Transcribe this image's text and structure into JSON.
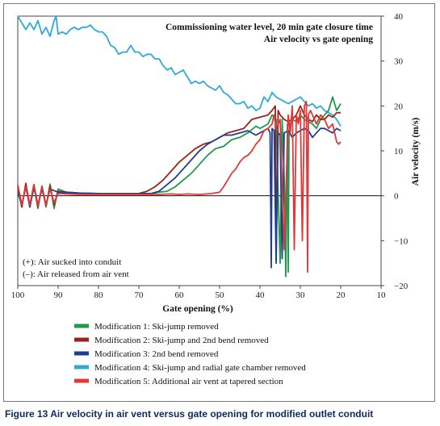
{
  "caption": "Figure 13 Air velocity in air vent versus gate opening for modified outlet conduit",
  "chart_data": {
    "type": "line",
    "title": "Commissioning water level, 20 min gate closure time",
    "subtitle": "Air velocity vs gate opening",
    "xlabel": "Gate opening (%)",
    "ylabel": "Air velocity (m/s)",
    "xlim": [
      100,
      10
    ],
    "ylim": [
      -20,
      40
    ],
    "x_ticks": [
      100,
      90,
      80,
      70,
      60,
      50,
      40,
      30,
      20,
      10
    ],
    "y_ticks": [
      -20,
      -10,
      0,
      10,
      20,
      30,
      40
    ],
    "legend_position": "bottom",
    "grid": false,
    "annotations": [
      "(+): Air sucked into conduit",
      "(–): Air released from air vent"
    ],
    "series": [
      {
        "name": "Modification 1: Ski-jump removed",
        "color": "#1f9a4c",
        "x": [
          100,
          99,
          98,
          97,
          96,
          95,
          94,
          93,
          92,
          91,
          90,
          88,
          85,
          80,
          75,
          70,
          67,
          65,
          63,
          61,
          59,
          57,
          55,
          53,
          51,
          49,
          47,
          45,
          43,
          41,
          40,
          39,
          38,
          37,
          36,
          35,
          34.5,
          34,
          33.6,
          33.2,
          33,
          32.8,
          32.5,
          32,
          31,
          30,
          29,
          28,
          27,
          26,
          25,
          24,
          23,
          22,
          21,
          20
        ],
        "y": [
          1.5,
          -2.5,
          2.5,
          -2.5,
          2,
          -2.8,
          2.2,
          -2.5,
          2.6,
          -2.8,
          1.5,
          0.8,
          0.6,
          0.4,
          0.5,
          0.4,
          0.5,
          0.8,
          1,
          2,
          3.5,
          5,
          7,
          9,
          10.5,
          11,
          12.5,
          13,
          14,
          15.5,
          15,
          15.5,
          16,
          18,
          17,
          -15,
          17,
          4,
          -18,
          16,
          -17,
          14,
          16,
          17,
          16.5,
          18,
          17,
          16.5,
          16,
          15,
          17,
          18,
          19,
          22,
          19,
          20.5
        ]
      },
      {
        "name": "Modification 2: Ski-jump and 2nd bend removed",
        "color": "#9b2318",
        "x": [
          100,
          99,
          98,
          97,
          96,
          95,
          94,
          93,
          92,
          91,
          90,
          88,
          85,
          80,
          75,
          70,
          68,
          66,
          64,
          62,
          60,
          58,
          56,
          54,
          52,
          50,
          48,
          46,
          44,
          42,
          40,
          38,
          37,
          36.2,
          36,
          35.5,
          35,
          34,
          33,
          32,
          31,
          30,
          29,
          28,
          27,
          26,
          25,
          24,
          23,
          22,
          21,
          20
        ],
        "y": [
          2,
          -2.5,
          2.8,
          -2.2,
          2.5,
          -2.5,
          2,
          -2.2,
          2.2,
          -2,
          1,
          0.8,
          0.6,
          0.5,
          0.5,
          0.5,
          1,
          2,
          3.5,
          5.5,
          7.5,
          9,
          10.5,
          11.5,
          12,
          13,
          14,
          14.5,
          15,
          17,
          17.5,
          18,
          19,
          20,
          -14,
          19,
          18,
          17,
          16.5,
          17,
          18,
          20,
          18,
          17,
          16.5,
          18,
          17,
          17,
          18,
          17.5,
          18.5,
          18.5
        ]
      },
      {
        "name": "Modification 3: 2nd bend removed",
        "color": "#1f3f8c",
        "x": [
          100,
          99,
          98,
          97,
          96,
          95,
          94,
          93,
          92,
          90,
          88,
          85,
          80,
          75,
          70,
          67,
          65,
          63,
          61,
          59,
          57,
          55,
          53,
          51,
          49,
          47,
          45,
          43,
          41,
          40,
          39,
          38,
          37.5,
          37.2,
          37,
          36.5,
          36,
          35.5,
          35,
          34.5,
          34,
          33,
          32,
          31,
          30,
          29,
          28,
          27,
          26,
          25,
          24,
          23,
          22,
          21,
          20
        ],
        "y": [
          1,
          -2,
          2,
          -2.5,
          2,
          -2,
          1.5,
          -2,
          1.5,
          0.8,
          0.7,
          0.6,
          0.5,
          0.4,
          0.5,
          0.5,
          1,
          2.5,
          4,
          6,
          8,
          10,
          11.5,
          12.5,
          13.5,
          13.5,
          14,
          14.5,
          13.5,
          14,
          14.5,
          15,
          14,
          -16,
          15,
          14.5,
          -15,
          14,
          13.5,
          -14,
          14,
          14.5,
          13,
          14,
          14.5,
          15,
          14.5,
          13,
          14,
          15,
          15,
          14.5,
          14,
          15,
          14.5
        ]
      },
      {
        "name": "Modification 4: Ski-jump and radial gate chamber removed",
        "color": "#2fa8dc",
        "x": [
          100,
          99,
          98,
          97,
          96,
          95,
          94,
          93,
          92,
          91,
          90.5,
          90,
          89,
          88,
          87,
          86,
          85,
          84,
          83,
          82,
          81,
          80,
          79,
          78,
          77,
          76,
          75,
          74,
          73,
          72,
          71,
          70,
          69,
          68,
          67,
          66,
          65,
          64,
          63,
          62,
          61,
          60,
          59,
          58,
          57,
          56,
          55,
          54,
          53,
          52,
          51,
          50,
          49,
          48,
          47,
          46,
          45,
          44,
          43,
          42,
          41,
          40,
          39,
          38,
          37,
          36,
          35,
          34,
          33,
          32,
          31,
          30,
          29,
          28,
          27,
          26,
          25,
          24,
          23,
          22,
          21,
          20
        ],
        "y": [
          40,
          38.5,
          37,
          38.5,
          37,
          39,
          36,
          37.5,
          35.5,
          39,
          40,
          36,
          36.5,
          36,
          37,
          37.5,
          37,
          37.5,
          37.5,
          38,
          37,
          36.5,
          36.5,
          35.5,
          33.5,
          33,
          31.5,
          32,
          32,
          33.5,
          32,
          32,
          31,
          31.5,
          31.5,
          30.5,
          30.5,
          29,
          28,
          28.5,
          27,
          27.5,
          28,
          26.5,
          25,
          25.5,
          25,
          25.5,
          24.5,
          24,
          23.5,
          24.5,
          23,
          22.5,
          21.5,
          20.5,
          20.5,
          21,
          19.5,
          20,
          19,
          19.5,
          22,
          21,
          23,
          22,
          21.5,
          21,
          20.5,
          21,
          21.5,
          22,
          21,
          20,
          20.5,
          19.5,
          20,
          19,
          18.5,
          18,
          17,
          15.5
        ]
      },
      {
        "name": "Modification 5: Additional air vent at tapered section",
        "color": "#e03838",
        "x": [
          100,
          99,
          98,
          97,
          96,
          95,
          94,
          93,
          92,
          91,
          90,
          88,
          85,
          80,
          75,
          70,
          65,
          62,
          60,
          58,
          55,
          52,
          50,
          49,
          48,
          47,
          46,
          45,
          44,
          43,
          42,
          41,
          40,
          39,
          38,
          37,
          36.5,
          36,
          35,
          34,
          33,
          32.5,
          32,
          31.5,
          31,
          30.5,
          30,
          29.5,
          29,
          28.5,
          28.2,
          28,
          27.5,
          27,
          26,
          25,
          24,
          23,
          22,
          21,
          20.5,
          20
        ],
        "y": [
          2.5,
          -2,
          2,
          -2,
          2.5,
          -2.2,
          2,
          -2,
          1.5,
          -1.5,
          0.5,
          0.4,
          0.3,
          0.3,
          0.3,
          0.3,
          0.3,
          0.4,
          0.3,
          0.4,
          0.3,
          0.5,
          0.8,
          2,
          3.5,
          5,
          6,
          7.5,
          8.5,
          9,
          10,
          11.5,
          12.5,
          14.5,
          15,
          16,
          18,
          15,
          17,
          -12,
          18,
          14,
          20,
          -12,
          18,
          16,
          19,
          -10,
          20,
          21,
          -17,
          18,
          19,
          18,
          16,
          18,
          17,
          15,
          16,
          12,
          11.5,
          12
        ]
      }
    ]
  }
}
